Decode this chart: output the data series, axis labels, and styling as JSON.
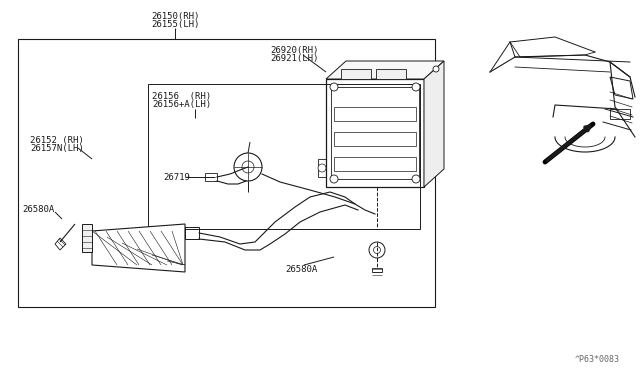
{
  "bg_color": "#ffffff",
  "line_color": "#1a1a1a",
  "watermark": "^P63*0083",
  "font_size": 6.5,
  "font_size_wm": 6.0,
  "labels": {
    "top": [
      "26150(RH)",
      "26155(LH)"
    ],
    "housing_label": [
      "26920(RH)",
      "26921(LH)"
    ],
    "inner_box_label": [
      "26156  (RH)",
      "26156+A(LH)"
    ],
    "lamp_label": [
      "26152 (RH)",
      "26157N(LH)"
    ],
    "wire_label": "26719",
    "screw_left": "26580A",
    "screw_right": "26580A"
  }
}
